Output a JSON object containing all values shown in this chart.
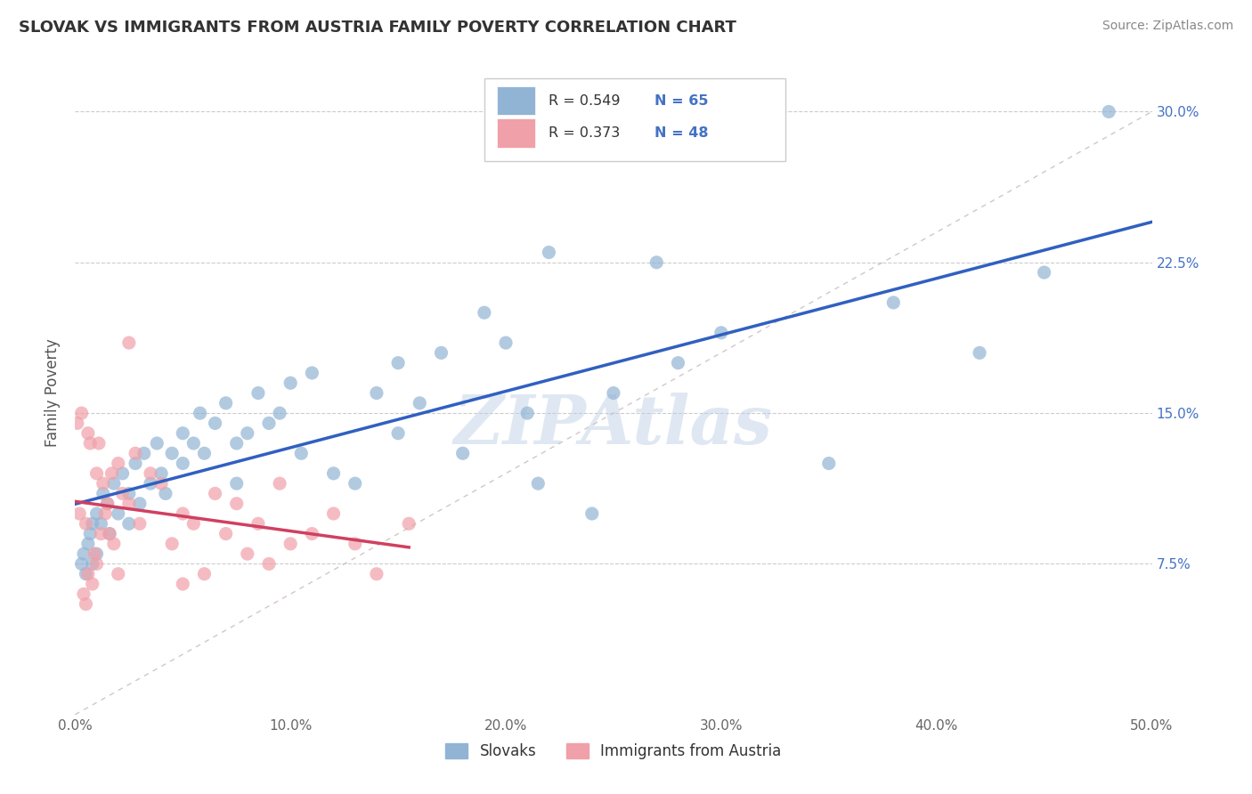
{
  "title": "SLOVAK VS IMMIGRANTS FROM AUSTRIA FAMILY POVERTY CORRELATION CHART",
  "source_text": "Source: ZipAtlas.com",
  "ylabel": "Family Poverty",
  "xlim": [
    0,
    50
  ],
  "ylim": [
    0,
    32
  ],
  "yticks": [
    0,
    7.5,
    15.0,
    22.5,
    30.0
  ],
  "xticks": [
    0,
    10,
    20,
    30,
    40,
    50
  ],
  "xtick_labels": [
    "0.0%",
    "10.0%",
    "20.0%",
    "30.0%",
    "40.0%",
    "50.0%"
  ],
  "ytick_labels_right": [
    "",
    "7.5%",
    "15.0%",
    "22.5%",
    "30.0%"
  ],
  "blue_color": "#92b4d4",
  "pink_color": "#f0a0a8",
  "blue_line_color": "#3060c0",
  "pink_line_color": "#d04060",
  "ref_line_color": "#c8b8b8",
  "watermark": "ZIPAtlas",
  "R_slovak": 0.549,
  "N_slovak": 65,
  "R_austria": 0.373,
  "N_austria": 48,
  "slovak_x": [
    0.3,
    0.4,
    0.5,
    0.6,
    0.7,
    0.8,
    0.8,
    1.0,
    1.0,
    1.2,
    1.3,
    1.5,
    1.6,
    1.8,
    2.0,
    2.2,
    2.5,
    2.5,
    2.8,
    3.0,
    3.2,
    3.5,
    3.8,
    4.0,
    4.2,
    4.5,
    5.0,
    5.0,
    5.5,
    5.8,
    6.0,
    6.5,
    7.0,
    7.5,
    7.5,
    8.0,
    8.5,
    9.0,
    9.5,
    10.0,
    10.5,
    11.0,
    12.0,
    13.0,
    14.0,
    15.0,
    15.0,
    16.0,
    17.0,
    18.0,
    19.0,
    20.0,
    21.0,
    21.5,
    22.0,
    24.0,
    25.0,
    27.0,
    28.0,
    30.0,
    35.0,
    38.0,
    42.0,
    45.0,
    48.0
  ],
  "slovak_y": [
    7.5,
    8.0,
    7.0,
    8.5,
    9.0,
    7.5,
    9.5,
    8.0,
    10.0,
    9.5,
    11.0,
    10.5,
    9.0,
    11.5,
    10.0,
    12.0,
    11.0,
    9.5,
    12.5,
    10.5,
    13.0,
    11.5,
    13.5,
    12.0,
    11.0,
    13.0,
    12.5,
    14.0,
    13.5,
    15.0,
    13.0,
    14.5,
    15.5,
    13.5,
    11.5,
    14.0,
    16.0,
    14.5,
    15.0,
    16.5,
    13.0,
    17.0,
    12.0,
    11.5,
    16.0,
    17.5,
    14.0,
    15.5,
    18.0,
    13.0,
    20.0,
    18.5,
    15.0,
    11.5,
    23.0,
    10.0,
    16.0,
    22.5,
    17.5,
    19.0,
    12.5,
    20.5,
    18.0,
    22.0,
    30.0
  ],
  "austria_x": [
    0.1,
    0.2,
    0.3,
    0.4,
    0.5,
    0.5,
    0.6,
    0.6,
    0.7,
    0.8,
    0.9,
    1.0,
    1.0,
    1.1,
    1.2,
    1.3,
    1.4,
    1.5,
    1.6,
    1.7,
    1.8,
    2.0,
    2.0,
    2.2,
    2.5,
    2.8,
    3.0,
    3.5,
    4.0,
    4.5,
    5.0,
    5.0,
    5.5,
    6.0,
    6.5,
    7.0,
    7.5,
    8.0,
    8.5,
    9.0,
    9.5,
    10.0,
    11.0,
    12.0,
    13.0,
    14.0,
    15.5,
    2.5
  ],
  "austria_y": [
    14.5,
    10.0,
    15.0,
    6.0,
    9.5,
    5.5,
    7.0,
    14.0,
    13.5,
    6.5,
    8.0,
    12.0,
    7.5,
    13.5,
    9.0,
    11.5,
    10.0,
    10.5,
    9.0,
    12.0,
    8.5,
    12.5,
    7.0,
    11.0,
    10.5,
    13.0,
    9.5,
    12.0,
    11.5,
    8.5,
    10.0,
    6.5,
    9.5,
    7.0,
    11.0,
    9.0,
    10.5,
    8.0,
    9.5,
    7.5,
    11.5,
    8.5,
    9.0,
    10.0,
    8.5,
    7.0,
    9.5,
    18.5
  ]
}
